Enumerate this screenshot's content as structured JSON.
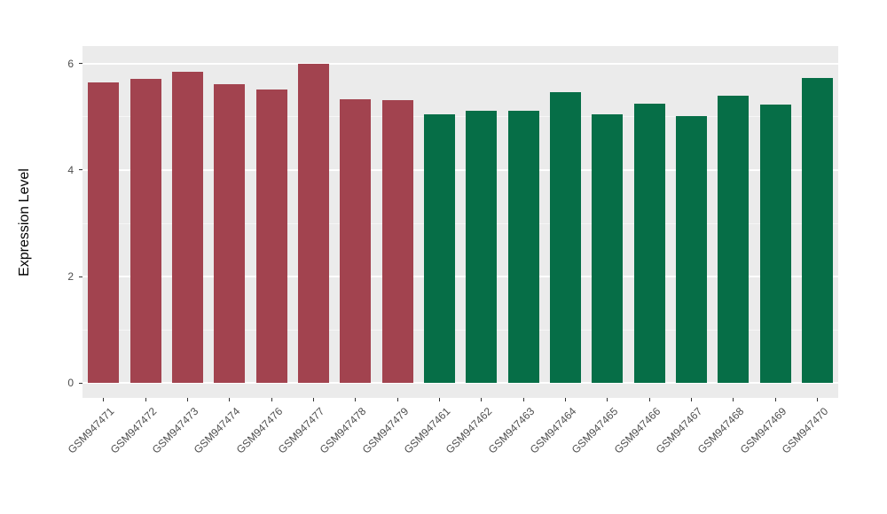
{
  "chart_data": {
    "type": "bar",
    "title": "",
    "xlabel": "",
    "ylabel": "Expression Level",
    "ylim": [
      -0.28,
      6.33
    ],
    "y_ticks": [
      0,
      2,
      4,
      6
    ],
    "y_minor_ticks": [
      1,
      3,
      5
    ],
    "categories": [
      "GSM947471",
      "GSM947472",
      "GSM947473",
      "GSM947474",
      "GSM947476",
      "GSM947477",
      "GSM947478",
      "GSM947479",
      "GSM947461",
      "GSM947462",
      "GSM947463",
      "GSM947464",
      "GSM947465",
      "GSM947466",
      "GSM947467",
      "GSM947468",
      "GSM947469",
      "GSM947470"
    ],
    "values": [
      5.65,
      5.72,
      5.85,
      5.62,
      5.52,
      6.0,
      5.33,
      5.32,
      5.05,
      5.12,
      5.12,
      5.47,
      5.05,
      5.25,
      5.02,
      5.4,
      5.23,
      5.73
    ],
    "groups": [
      "A",
      "A",
      "A",
      "A",
      "A",
      "A",
      "A",
      "A",
      "B",
      "B",
      "B",
      "B",
      "B",
      "B",
      "B",
      "B",
      "B",
      "B"
    ],
    "group_colors": {
      "A": "#A2434F",
      "B": "#066E47"
    },
    "panel_bg": "#EBEBEB",
    "grid_color": "#FFFFFF",
    "legend": "none",
    "grid": "on"
  }
}
